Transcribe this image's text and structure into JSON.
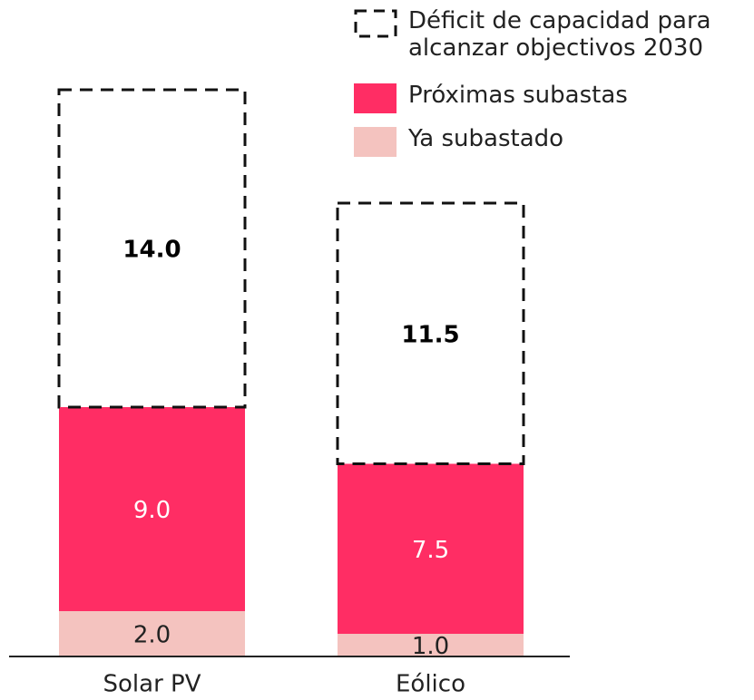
{
  "chart_data": {
    "type": "stacked_bar",
    "categories": [
      "Solar PV",
      "Eólico"
    ],
    "series": [
      {
        "name": "Ya subastado",
        "color": "#f4c3bf",
        "values": [
          2.0,
          1.0
        ],
        "value_labels": [
          "2.0",
          "1.0"
        ],
        "label_color": "#222222"
      },
      {
        "name": "Próximas subastas",
        "color": "#ff2d64",
        "values": [
          9.0,
          7.5
        ],
        "value_labels": [
          "9.0",
          "7.5"
        ],
        "label_color": "#ffffff"
      },
      {
        "name": "Déficit de capacidad para alcanzar objectivos 2030",
        "color": "#111111",
        "style": "dashed",
        "values": [
          14.0,
          11.5
        ],
        "value_labels": [
          "14.0",
          "11.5"
        ],
        "label_color": "#000000"
      }
    ]
  }
}
